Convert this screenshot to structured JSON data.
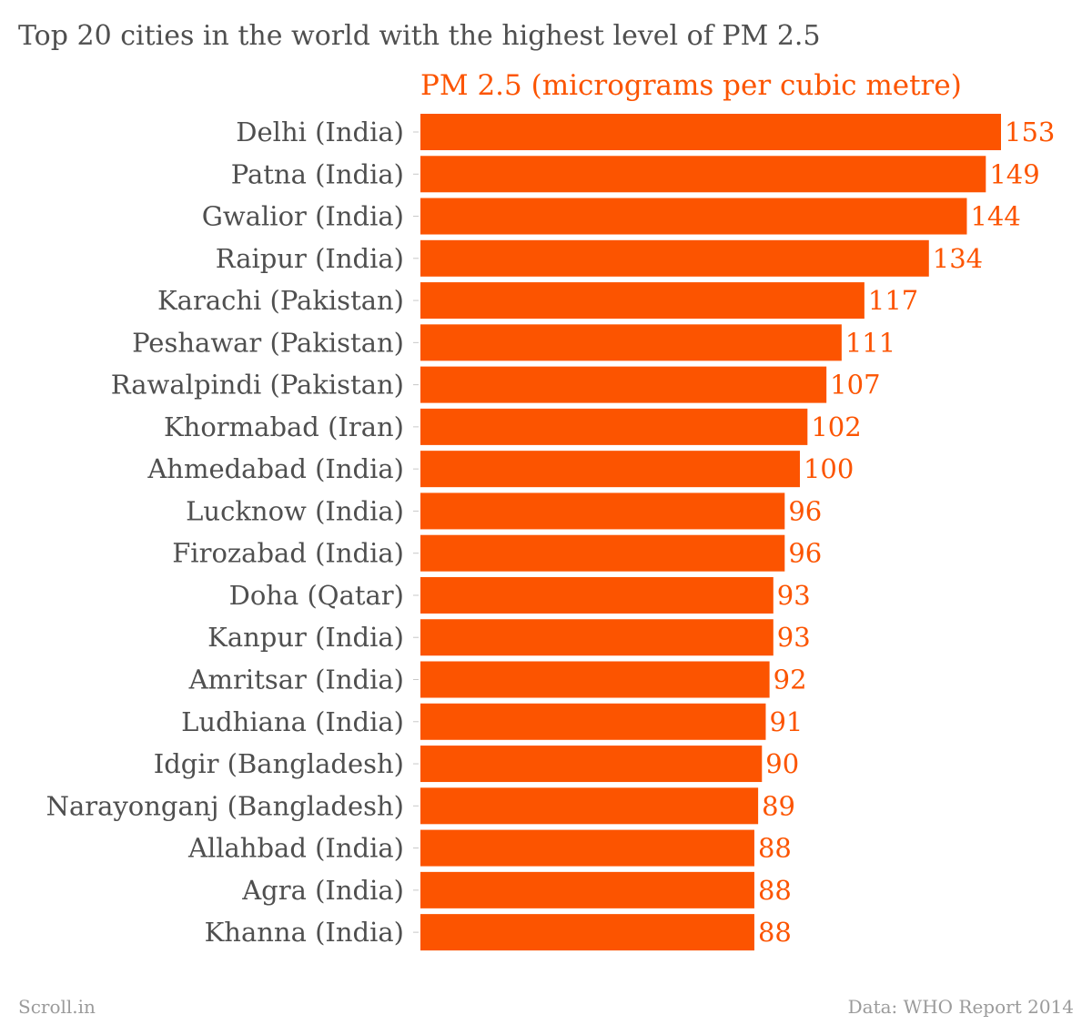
{
  "chart_data": {
    "type": "bar",
    "orientation": "horizontal",
    "title": "Top 20 cities in the world with the highest level of PM 2.5",
    "series_label": "PM 2.5 (micrograms per cubic metre)",
    "categories": [
      "Delhi (India)",
      "Patna (India)",
      "Gwalior (India)",
      "Raipur (India)",
      "Karachi (Pakistan)",
      "Peshawar (Pakistan)",
      "Rawalpindi (Pakistan)",
      "Khormabad (Iran)",
      "Ahmedabad (India)",
      "Lucknow (India)",
      "Firozabad (India)",
      "Doha (Qatar)",
      "Kanpur (India)",
      "Amritsar (India)",
      "Ludhiana (India)",
      "Idgir (Bangladesh)",
      "Narayonganj (Bangladesh)",
      "Allahbad (India)",
      "Agra (India)",
      "Khanna (India)"
    ],
    "values": [
      153,
      149,
      144,
      134,
      117,
      111,
      107,
      102,
      100,
      96,
      96,
      93,
      93,
      92,
      91,
      90,
      89,
      88,
      88,
      88
    ],
    "xlim": [
      0,
      153
    ],
    "grid": false,
    "bar_color": "#fc5400",
    "label_color": "#4f4f4f",
    "value_label_color": "#fc5400"
  },
  "footer": {
    "source_left": "Scroll.in",
    "source_right": "Data: WHO Report 2014"
  }
}
